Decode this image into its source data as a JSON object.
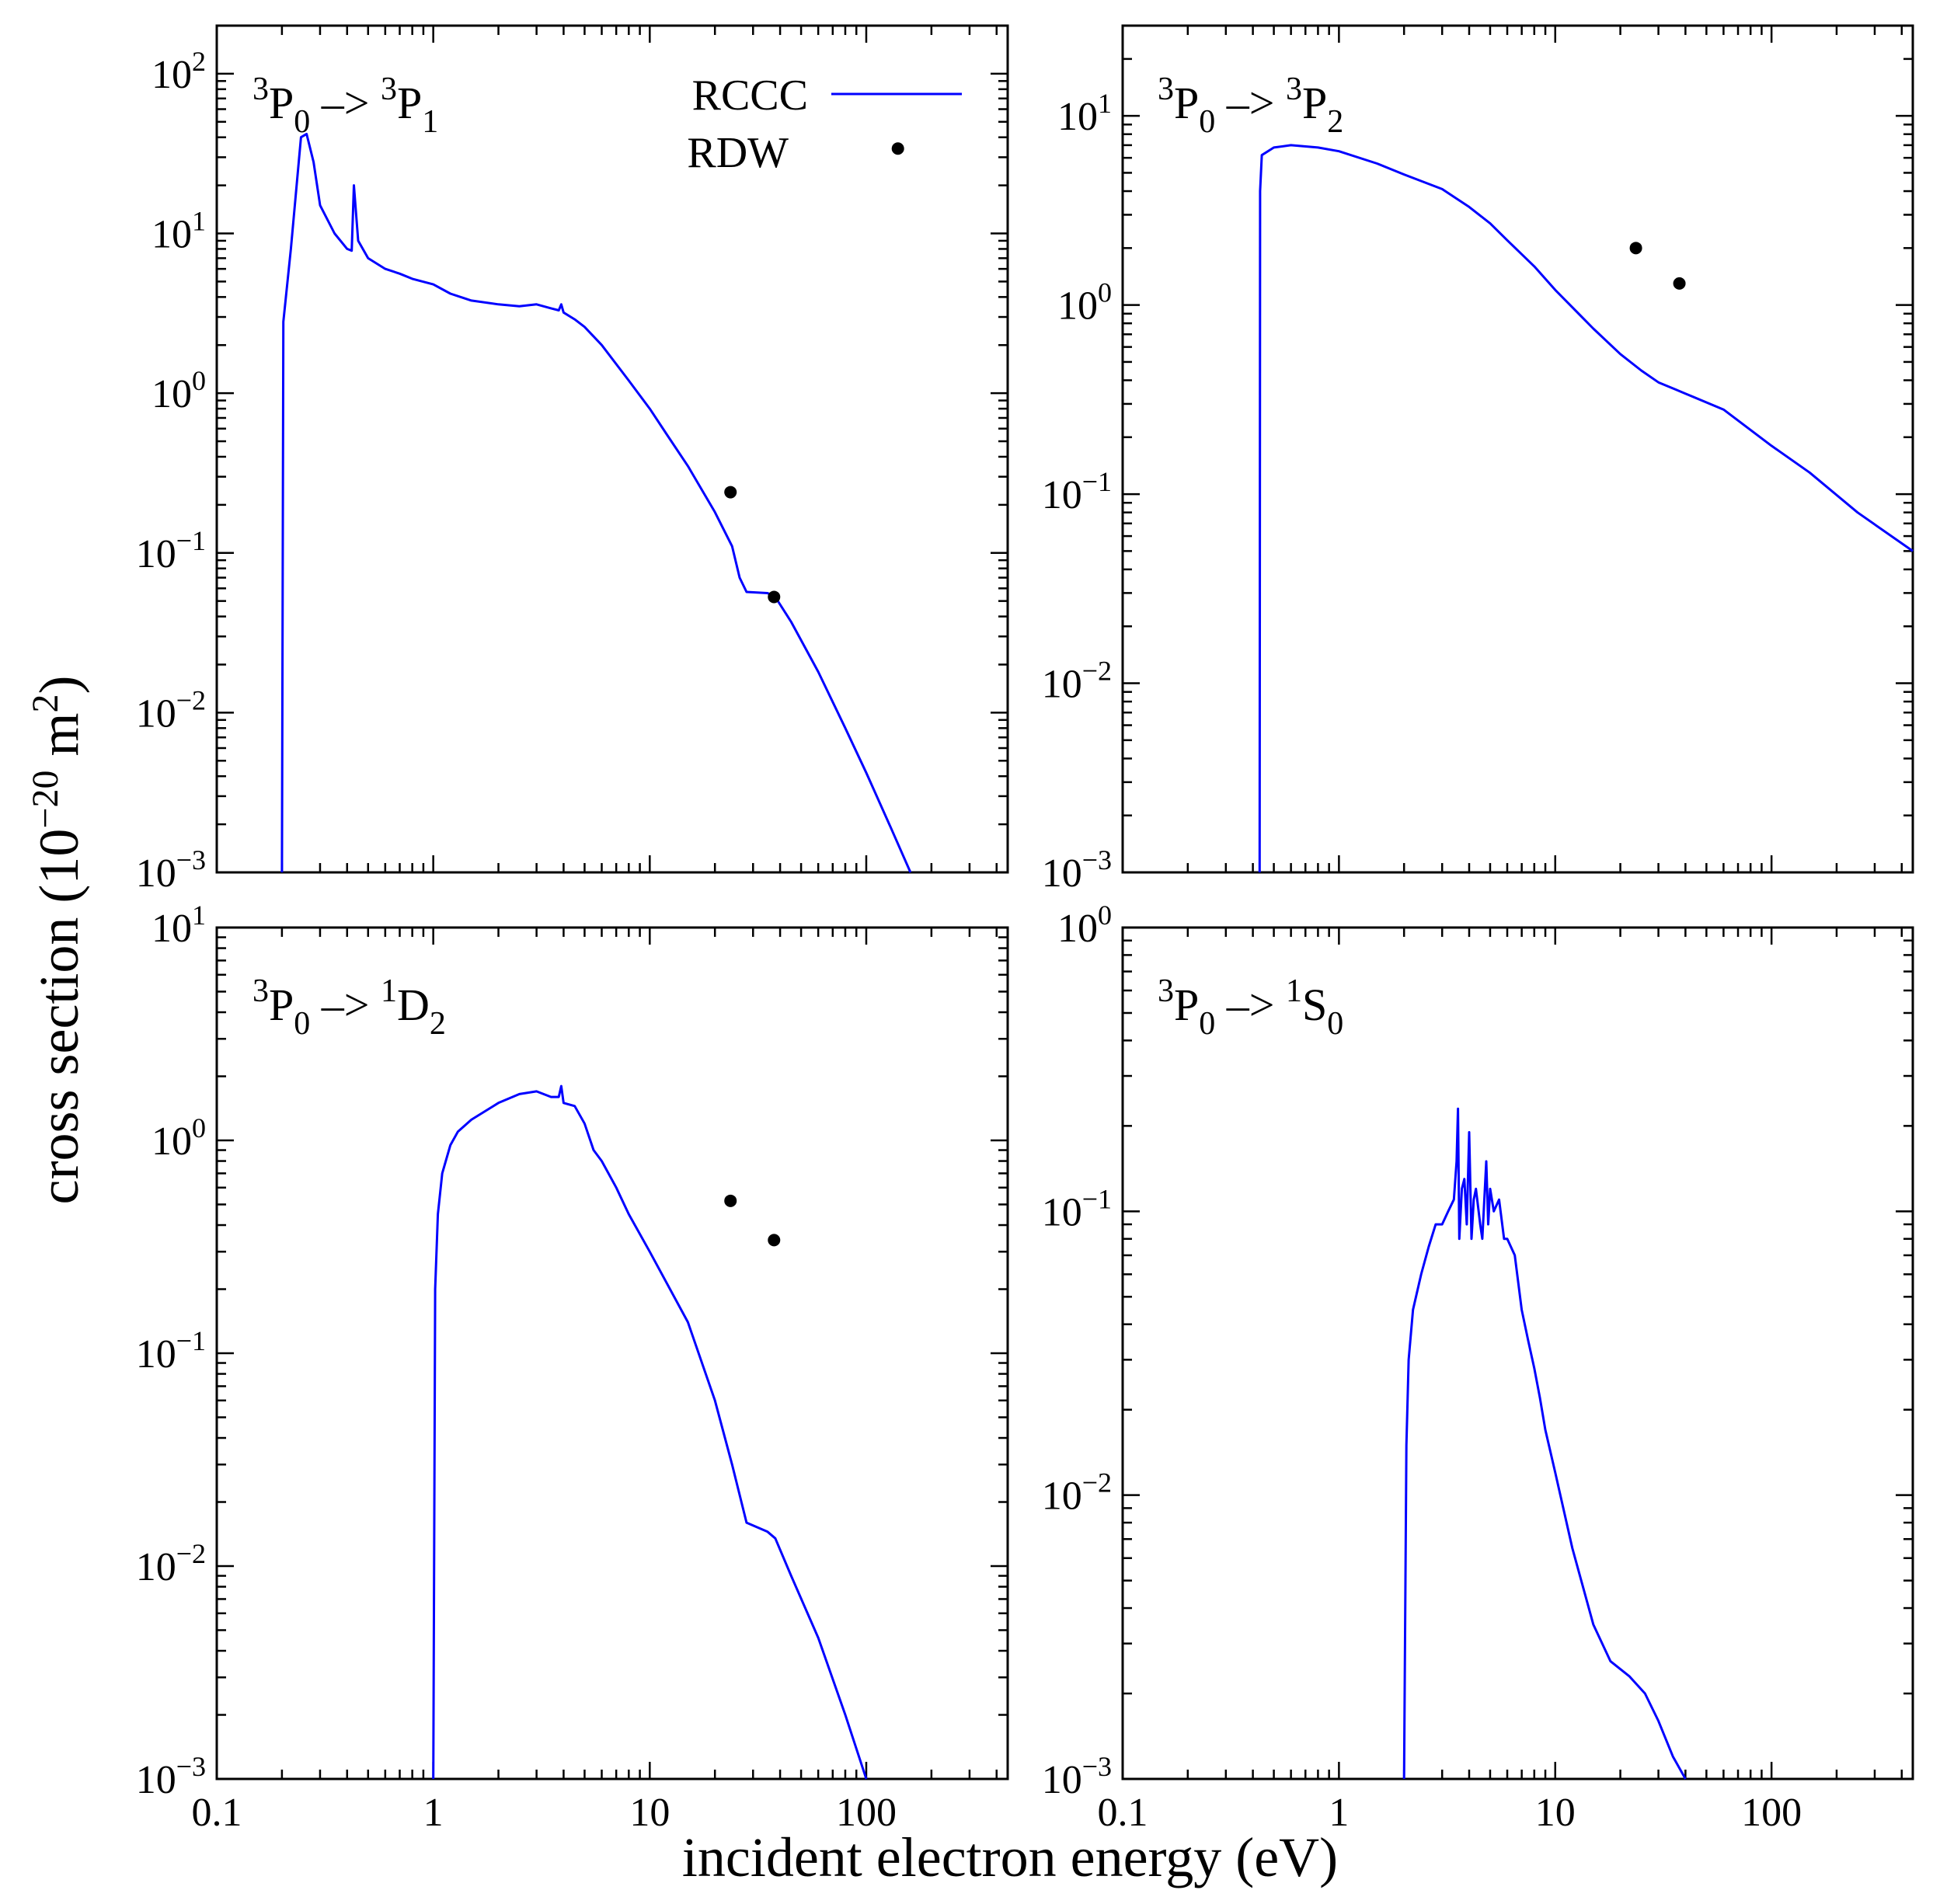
{
  "axes": {
    "xlabel": "incident electron energy (eV)",
    "ylabel_main": "cross section (10",
    "ylabel_exp1": "−20",
    "ylabel_mid": " m",
    "ylabel_exp2": "2",
    "ylabel_end": ")"
  },
  "legend": {
    "rccc": "RCCC",
    "rdw": "RDW"
  },
  "colors": {
    "rccc": "#0000ff",
    "rdw": "#000000"
  },
  "chart_data": [
    {
      "type": "line",
      "title": {
        "sup1": "3",
        "base1": "P",
        "sub1": "0",
        "arrow": " –> ",
        "sup2": "3",
        "base2": "P",
        "sub2": "1"
      },
      "xscale": "log",
      "yscale": "log",
      "xlim": [
        0.1,
        450
      ],
      "ylim": [
        0.001,
        200
      ],
      "xticks": [],
      "yticks": [
        -3,
        -2,
        -1,
        0,
        1,
        2
      ],
      "legend_position": "top-right",
      "series": [
        {
          "name": "RCCC",
          "x": [
            0.2,
            0.203,
            0.22,
            0.245,
            0.26,
            0.28,
            0.3,
            0.35,
            0.4,
            0.42,
            0.43,
            0.45,
            0.5,
            0.6,
            0.7,
            0.8,
            1.0,
            1.2,
            1.5,
            2.0,
            2.5,
            3.0,
            3.5,
            3.8,
            3.9,
            4.0,
            4.5,
            5.0,
            6.0,
            8.0,
            10,
            12,
            15,
            20,
            24,
            26,
            28,
            35,
            38,
            45,
            60,
            80,
            100,
            130,
            160
          ],
          "y": [
            0.001,
            2.8,
            8,
            40,
            42,
            28,
            15,
            10,
            8,
            7.8,
            20,
            9,
            7,
            6,
            5.6,
            5.2,
            4.8,
            4.2,
            3.8,
            3.6,
            3.5,
            3.6,
            3.4,
            3.3,
            3.6,
            3.2,
            2.9,
            2.6,
            2.0,
            1.2,
            0.8,
            0.55,
            0.35,
            0.18,
            0.11,
            0.07,
            0.057,
            0.056,
            0.053,
            0.037,
            0.018,
            0.008,
            0.0042,
            0.0019,
            0.001
          ]
        },
        {
          "name": "RDW",
          "x": [
            23.6,
            37.5,
            140
          ],
          "y": [
            0.24,
            0.053,
            34
          ]
        }
      ]
    },
    {
      "type": "line",
      "title": {
        "sup1": "3",
        "base1": "P",
        "sub1": "0",
        "arrow": " –> ",
        "sup2": "3",
        "base2": "P",
        "sub2": "2"
      },
      "xscale": "log",
      "yscale": "log",
      "xlim": [
        0.1,
        450
      ],
      "ylim": [
        0.001,
        30
      ],
      "xticks": [],
      "yticks": [
        -3,
        -2,
        -1,
        0,
        1
      ],
      "series": [
        {
          "name": "RCCC",
          "x": [
            0.43,
            0.432,
            0.44,
            0.5,
            0.6,
            0.8,
            1.0,
            1.5,
            2.0,
            3.0,
            4.0,
            5.0,
            6.0,
            8.0,
            10,
            15,
            20,
            25,
            30,
            40,
            60,
            100,
            150,
            250,
            450
          ],
          "y": [
            0.001,
            4,
            6.2,
            6.8,
            7.0,
            6.8,
            6.5,
            5.6,
            4.9,
            4.1,
            3.3,
            2.7,
            2.2,
            1.6,
            1.2,
            0.75,
            0.55,
            0.45,
            0.39,
            0.34,
            0.28,
            0.18,
            0.13,
            0.08,
            0.05
          ]
        },
        {
          "name": "RDW",
          "x": [
            23.6,
            37.5
          ],
          "y": [
            2.0,
            1.3
          ]
        }
      ]
    },
    {
      "type": "line",
      "title": {
        "sup1": "3",
        "base1": "P",
        "sub1": "0",
        "arrow": " –> ",
        "sup2": "1",
        "base2": "D",
        "sub2": "2"
      },
      "xscale": "log",
      "yscale": "log",
      "xlim": [
        0.1,
        450
      ],
      "ylim": [
        0.001,
        10
      ],
      "xticks": [
        "0.1",
        "1",
        "10",
        "100"
      ],
      "yticks": [
        -3,
        -2,
        -1,
        0,
        1
      ],
      "series": [
        {
          "name": "RCCC",
          "x": [
            1.0,
            1.02,
            1.05,
            1.1,
            1.2,
            1.3,
            1.5,
            2.0,
            2.5,
            3.0,
            3.5,
            3.8,
            3.9,
            4.0,
            4.5,
            5.0,
            5.5,
            6.0,
            7.0,
            8.0,
            10,
            15,
            20,
            24,
            28,
            35,
            38,
            45,
            60,
            80,
            100
          ],
          "y": [
            0.001,
            0.2,
            0.45,
            0.7,
            0.95,
            1.1,
            1.25,
            1.5,
            1.65,
            1.7,
            1.6,
            1.6,
            1.8,
            1.5,
            1.45,
            1.2,
            0.9,
            0.8,
            0.6,
            0.45,
            0.3,
            0.14,
            0.06,
            0.03,
            0.016,
            0.0145,
            0.0135,
            0.009,
            0.0046,
            0.002,
            0.001
          ]
        },
        {
          "name": "RDW",
          "x": [
            23.6,
            37.5
          ],
          "y": [
            0.52,
            0.34
          ]
        }
      ]
    },
    {
      "type": "line",
      "title": {
        "sup1": "3",
        "base1": "P",
        "sub1": "0",
        "arrow": " –> ",
        "sup2": "1",
        "base2": "S",
        "sub2": "0"
      },
      "xscale": "log",
      "yscale": "log",
      "xlim": [
        0.1,
        450
      ],
      "ylim": [
        0.001,
        1
      ],
      "xticks": [
        "0.1",
        "1",
        "10",
        "100"
      ],
      "yticks": [
        -3,
        -2,
        -1,
        0
      ],
      "series": [
        {
          "name": "RCCC",
          "x": [
            2.0,
            2.05,
            2.1,
            2.2,
            2.4,
            2.6,
            2.8,
            3.0,
            3.2,
            3.4,
            3.5,
            3.55,
            3.6,
            3.7,
            3.8,
            3.9,
            4.0,
            4.1,
            4.2,
            4.3,
            4.5,
            4.6,
            4.7,
            4.8,
            4.9,
            5.0,
            5.2,
            5.5,
            5.8,
            6.0,
            6.5,
            7.0,
            7.5,
            8.0,
            8.5,
            9.0,
            10,
            12,
            15,
            18,
            22,
            26,
            30,
            35,
            40
          ],
          "y": [
            0.001,
            0.015,
            0.03,
            0.045,
            0.06,
            0.075,
            0.09,
            0.09,
            0.1,
            0.11,
            0.15,
            0.23,
            0.08,
            0.12,
            0.13,
            0.09,
            0.19,
            0.08,
            0.11,
            0.12,
            0.09,
            0.08,
            0.11,
            0.15,
            0.09,
            0.12,
            0.1,
            0.11,
            0.08,
            0.08,
            0.07,
            0.045,
            0.035,
            0.028,
            0.022,
            0.017,
            0.012,
            0.0065,
            0.0035,
            0.0026,
            0.0023,
            0.002,
            0.0016,
            0.0012,
            0.001
          ]
        }
      ]
    }
  ]
}
